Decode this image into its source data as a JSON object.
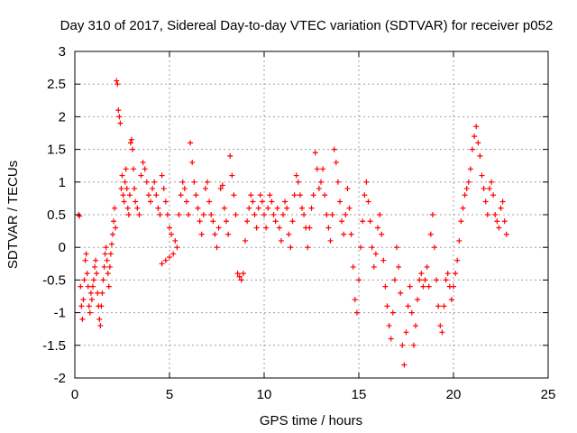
{
  "chart_data": {
    "type": "scatter",
    "title": "Day 310 of 2017, Sidereal Day-to-day VTEC variation (SDTVAR) for receiver p052",
    "xlabel": "GPS time / hours",
    "ylabel": "SDTVAR / TECUs",
    "xlim": [
      0,
      25
    ],
    "ylim": [
      -2,
      3
    ],
    "xticks": [
      0,
      5,
      10,
      15,
      20,
      25
    ],
    "xtick_labels": [
      "0",
      "5",
      "10",
      "15",
      "20",
      "25"
    ],
    "yticks": [
      -2,
      -1.5,
      -1,
      -0.5,
      0,
      0.5,
      1,
      1.5,
      2,
      2.5,
      3
    ],
    "ytick_labels": [
      "-2",
      "-1.5",
      "-1",
      "-0.5",
      "0",
      "0.5",
      "1",
      "1.5",
      "2",
      "2.5",
      "3"
    ],
    "grid": true,
    "marker": "+",
    "marker_color": "#ff0000",
    "series": [
      {
        "name": "SDTVAR",
        "points": [
          [
            0.2,
            0.5
          ],
          [
            0.25,
            0.48
          ],
          [
            0.3,
            -0.6
          ],
          [
            0.35,
            -0.9
          ],
          [
            0.4,
            -1.1
          ],
          [
            0.45,
            -0.8
          ],
          [
            0.5,
            -0.5
          ],
          [
            0.55,
            -0.2
          ],
          [
            0.6,
            -0.1
          ],
          [
            0.65,
            -0.4
          ],
          [
            0.7,
            -0.6
          ],
          [
            0.75,
            -0.9
          ],
          [
            0.8,
            -1.0
          ],
          [
            0.85,
            -0.7
          ],
          [
            0.9,
            -0.8
          ],
          [
            0.95,
            -0.6
          ],
          [
            1.0,
            -0.5
          ],
          [
            1.05,
            -0.3
          ],
          [
            1.1,
            -0.2
          ],
          [
            1.15,
            -0.4
          ],
          [
            1.2,
            -0.7
          ],
          [
            1.25,
            -0.9
          ],
          [
            1.3,
            -1.1
          ],
          [
            1.35,
            -1.2
          ],
          [
            1.4,
            -0.9
          ],
          [
            1.45,
            -0.7
          ],
          [
            1.5,
            -0.5
          ],
          [
            1.55,
            -0.3
          ],
          [
            1.6,
            -0.1
          ],
          [
            1.65,
            0.0
          ],
          [
            1.7,
            -0.2
          ],
          [
            1.75,
            -0.4
          ],
          [
            1.8,
            -0.6
          ],
          [
            1.85,
            -0.3
          ],
          [
            1.9,
            -0.1
          ],
          [
            1.95,
            0.05
          ],
          [
            2.0,
            0.2
          ],
          [
            2.05,
            0.4
          ],
          [
            2.1,
            0.6
          ],
          [
            2.15,
            0.3
          ],
          [
            2.2,
            2.55
          ],
          [
            2.25,
            2.5
          ],
          [
            2.3,
            2.1
          ],
          [
            2.35,
            2.0
          ],
          [
            2.4,
            1.9
          ],
          [
            2.45,
            0.9
          ],
          [
            2.5,
            1.1
          ],
          [
            2.55,
            0.8
          ],
          [
            2.6,
            0.7
          ],
          [
            2.65,
            1.0
          ],
          [
            2.7,
            1.2
          ],
          [
            2.75,
            0.9
          ],
          [
            2.8,
            0.6
          ],
          [
            2.85,
            0.5
          ],
          [
            2.9,
            0.8
          ],
          [
            2.95,
            1.6
          ],
          [
            3.0,
            1.65
          ],
          [
            3.05,
            1.5
          ],
          [
            3.1,
            1.2
          ],
          [
            3.15,
            0.9
          ],
          [
            3.2,
            0.7
          ],
          [
            3.3,
            0.6
          ],
          [
            3.4,
            0.5
          ],
          [
            3.5,
            1.1
          ],
          [
            3.6,
            1.3
          ],
          [
            3.7,
            1.2
          ],
          [
            3.8,
            1.0
          ],
          [
            3.9,
            0.8
          ],
          [
            4.0,
            0.7
          ],
          [
            4.1,
            0.9
          ],
          [
            4.2,
            1.0
          ],
          [
            4.3,
            0.8
          ],
          [
            4.4,
            0.6
          ],
          [
            4.5,
            0.5
          ],
          [
            4.6,
            1.1
          ],
          [
            4.7,
            0.9
          ],
          [
            4.8,
            0.7
          ],
          [
            4.9,
            0.5
          ],
          [
            5.0,
            0.3
          ],
          [
            5.1,
            0.2
          ],
          [
            4.6,
            -0.25
          ],
          [
            4.8,
            -0.2
          ],
          [
            5.0,
            -0.15
          ],
          [
            5.2,
            -0.1
          ],
          [
            5.3,
            0.1
          ],
          [
            5.4,
            0.0
          ],
          [
            5.5,
            0.5
          ],
          [
            5.6,
            0.8
          ],
          [
            5.7,
            1.0
          ],
          [
            5.8,
            0.9
          ],
          [
            5.9,
            0.7
          ],
          [
            6.0,
            0.5
          ],
          [
            6.1,
            1.6
          ],
          [
            6.2,
            1.3
          ],
          [
            6.3,
            1.0
          ],
          [
            6.4,
            0.8
          ],
          [
            6.5,
            0.6
          ],
          [
            6.6,
            0.4
          ],
          [
            6.7,
            0.2
          ],
          [
            6.8,
            0.5
          ],
          [
            6.9,
            0.9
          ],
          [
            7.0,
            1.0
          ],
          [
            7.1,
            0.7
          ],
          [
            7.2,
            0.5
          ],
          [
            7.3,
            0.4
          ],
          [
            7.4,
            0.2
          ],
          [
            7.5,
            0.0
          ],
          [
            7.6,
            0.3
          ],
          [
            7.7,
            0.9
          ],
          [
            7.8,
            0.95
          ],
          [
            7.9,
            0.6
          ],
          [
            8.0,
            0.4
          ],
          [
            8.1,
            0.2
          ],
          [
            8.2,
            1.4
          ],
          [
            8.3,
            1.1
          ],
          [
            8.4,
            0.8
          ],
          [
            8.5,
            0.5
          ],
          [
            8.6,
            -0.4
          ],
          [
            8.7,
            -0.45
          ],
          [
            8.8,
            -0.5
          ],
          [
            8.9,
            -0.4
          ],
          [
            9.0,
            0.1
          ],
          [
            9.1,
            0.4
          ],
          [
            9.2,
            0.6
          ],
          [
            9.3,
            0.8
          ],
          [
            9.4,
            0.7
          ],
          [
            9.5,
            0.5
          ],
          [
            9.6,
            0.3
          ],
          [
            9.7,
            0.6
          ],
          [
            9.8,
            0.8
          ],
          [
            9.9,
            0.7
          ],
          [
            10.0,
            0.5
          ],
          [
            10.1,
            0.3
          ],
          [
            10.2,
            0.6
          ],
          [
            10.3,
            0.8
          ],
          [
            10.4,
            0.7
          ],
          [
            10.5,
            0.5
          ],
          [
            10.6,
            0.4
          ],
          [
            10.7,
            0.6
          ],
          [
            10.8,
            0.3
          ],
          [
            10.9,
            0.1
          ],
          [
            11.0,
            0.5
          ],
          [
            11.1,
            0.7
          ],
          [
            11.2,
            0.6
          ],
          [
            11.3,
            0.2
          ],
          [
            11.4,
            0.0
          ],
          [
            11.5,
            0.4
          ],
          [
            11.6,
            0.8
          ],
          [
            11.7,
            1.1
          ],
          [
            11.8,
            1.0
          ],
          [
            11.9,
            0.8
          ],
          [
            12.0,
            0.6
          ],
          [
            12.1,
            0.5
          ],
          [
            12.2,
            0.3
          ],
          [
            12.3,
            0.0
          ],
          [
            12.4,
            0.3
          ],
          [
            12.5,
            0.6
          ],
          [
            12.6,
            0.8
          ],
          [
            12.7,
            1.45
          ],
          [
            12.8,
            1.2
          ],
          [
            12.9,
            0.9
          ],
          [
            13.0,
            1.0
          ],
          [
            13.1,
            1.2
          ],
          [
            13.2,
            0.8
          ],
          [
            13.3,
            0.5
          ],
          [
            13.4,
            0.3
          ],
          [
            13.5,
            0.1
          ],
          [
            13.6,
            0.5
          ],
          [
            13.7,
            1.5
          ],
          [
            13.8,
            1.3
          ],
          [
            13.9,
            1.0
          ],
          [
            14.0,
            0.7
          ],
          [
            14.1,
            0.4
          ],
          [
            14.2,
            0.2
          ],
          [
            14.3,
            0.5
          ],
          [
            14.4,
            0.9
          ],
          [
            14.5,
            0.6
          ],
          [
            14.6,
            0.2
          ],
          [
            14.7,
            -0.3
          ],
          [
            14.8,
            -0.8
          ],
          [
            14.9,
            -1.0
          ],
          [
            15.0,
            -0.5
          ],
          [
            15.1,
            0.0
          ],
          [
            15.2,
            0.4
          ],
          [
            15.3,
            0.8
          ],
          [
            15.4,
            1.0
          ],
          [
            15.5,
            0.7
          ],
          [
            15.6,
            0.4
          ],
          [
            15.7,
            0.0
          ],
          [
            15.8,
            -0.3
          ],
          [
            15.9,
            -0.1
          ],
          [
            16.0,
            0.3
          ],
          [
            16.1,
            0.5
          ],
          [
            16.2,
            0.2
          ],
          [
            16.3,
            -0.2
          ],
          [
            16.4,
            -0.6
          ],
          [
            16.5,
            -0.9
          ],
          [
            16.6,
            -1.2
          ],
          [
            16.7,
            -1.4
          ],
          [
            16.8,
            -1.0
          ],
          [
            16.9,
            -0.5
          ],
          [
            17.0,
            0.0
          ],
          [
            17.1,
            -0.3
          ],
          [
            17.2,
            -0.7
          ],
          [
            17.3,
            -1.5
          ],
          [
            17.4,
            -1.8
          ],
          [
            17.5,
            -1.3
          ],
          [
            17.6,
            -0.9
          ],
          [
            17.7,
            -0.6
          ],
          [
            17.8,
            -1.0
          ],
          [
            17.9,
            -1.5
          ],
          [
            18.0,
            -1.2
          ],
          [
            18.1,
            -0.8
          ],
          [
            18.2,
            -0.5
          ],
          [
            18.3,
            -0.4
          ],
          [
            18.4,
            -0.6
          ],
          [
            18.5,
            -0.5
          ],
          [
            18.6,
            -0.3
          ],
          [
            18.7,
            -0.6
          ],
          [
            18.8,
            0.2
          ],
          [
            18.9,
            0.5
          ],
          [
            19.0,
            0.0
          ],
          [
            19.1,
            -0.5
          ],
          [
            19.2,
            -0.9
          ],
          [
            19.3,
            -1.2
          ],
          [
            19.4,
            -1.3
          ],
          [
            19.5,
            -0.9
          ],
          [
            19.6,
            -0.5
          ],
          [
            19.7,
            -0.4
          ],
          [
            19.8,
            -0.6
          ],
          [
            19.9,
            -0.8
          ],
          [
            20.0,
            -0.6
          ],
          [
            20.1,
            -0.4
          ],
          [
            20.2,
            -0.2
          ],
          [
            20.3,
            0.1
          ],
          [
            20.4,
            0.4
          ],
          [
            20.5,
            0.6
          ],
          [
            20.6,
            0.8
          ],
          [
            20.7,
            0.9
          ],
          [
            20.8,
            1.0
          ],
          [
            20.9,
            1.2
          ],
          [
            21.0,
            1.5
          ],
          [
            21.1,
            1.7
          ],
          [
            21.2,
            1.85
          ],
          [
            21.3,
            1.6
          ],
          [
            21.4,
            1.4
          ],
          [
            21.5,
            1.1
          ],
          [
            21.6,
            0.9
          ],
          [
            21.7,
            0.7
          ],
          [
            21.8,
            0.5
          ],
          [
            21.9,
            0.9
          ],
          [
            22.0,
            1.0
          ],
          [
            22.1,
            0.8
          ],
          [
            22.2,
            0.5
          ],
          [
            22.3,
            0.4
          ],
          [
            22.4,
            0.3
          ],
          [
            22.5,
            0.6
          ],
          [
            22.6,
            0.7
          ],
          [
            22.7,
            0.4
          ],
          [
            22.8,
            0.2
          ]
        ]
      }
    ]
  }
}
